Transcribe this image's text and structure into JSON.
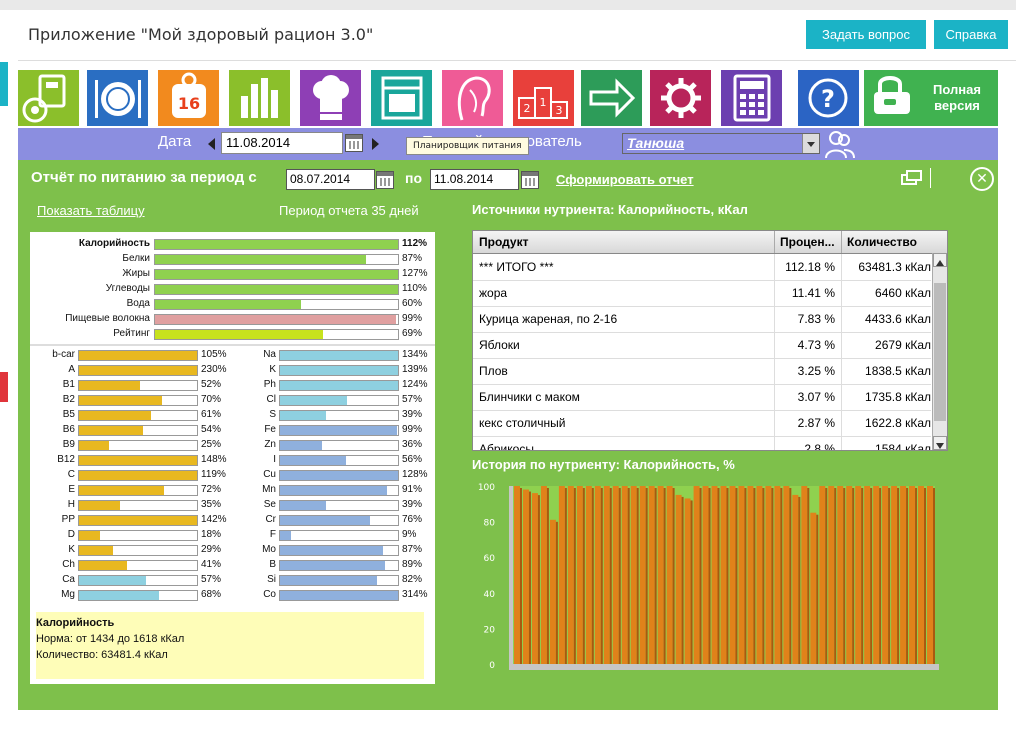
{
  "header": {
    "title": "Приложение \"Мой здоровый рацион 3.0\"",
    "ask_button": "Задать вопрос",
    "help_button": "Справка"
  },
  "toolbar": {
    "items": [
      {
        "icon": "scale-tape-icon",
        "color": "#8bbf2b"
      },
      {
        "icon": "plate-cutlery-icon",
        "color": "#2a6ec2"
      },
      {
        "icon": "weight-16-icon",
        "color": "#f28a1e",
        "label": "16"
      },
      {
        "icon": "bar-chart-icon",
        "color": "#8bbf2b"
      },
      {
        "icon": "chef-hat-icon",
        "color": "#8e3fb5"
      },
      {
        "icon": "oven-icon",
        "color": "#19a69b"
      },
      {
        "icon": "woman-face-icon",
        "color": "#ef5b96"
      },
      {
        "icon": "podium-icon",
        "color": "#e8403b"
      },
      {
        "icon": "arrow-right-icon",
        "color": "#2d9c59"
      },
      {
        "icon": "gear-icon",
        "color": "#b8245a"
      },
      {
        "icon": "calculator-icon",
        "color": "#6c3fb0"
      },
      {
        "icon": "help-icon",
        "color": "#2b64c4"
      }
    ],
    "full_version_line1": "Полная",
    "full_version_line2": "версия",
    "full_version_color": "#40b250"
  },
  "datebar": {
    "date_label": "Дата",
    "date_value": "11.08.2014",
    "user_label": "Текущий пользователь",
    "user_value": "Танюша",
    "tooltip": "Планировщик питания"
  },
  "report": {
    "title": "Отчёт по питанию за период с",
    "from": "08.07.2014",
    "to_label": "по",
    "to": "11.08.2014",
    "generate": "Сформировать отчет",
    "show_table": "Показать таблицу",
    "period": "Период отчета 35 дней"
  },
  "macros": [
    {
      "name": "Калорийность",
      "pct": 112,
      "label": "112%",
      "color": "#8fd14f",
      "bold": true
    },
    {
      "name": "Белки",
      "pct": 87,
      "label": "87%",
      "color": "#8fd14f"
    },
    {
      "name": "Жиры",
      "pct": 127,
      "label": "127%",
      "color": "#8fd14f"
    },
    {
      "name": "Углеводы",
      "pct": 110,
      "label": "110%",
      "color": "#8fd14f"
    },
    {
      "name": "Вода",
      "pct": 60,
      "label": "60%",
      "color": "#8fd14f"
    },
    {
      "name": "Пищевые волокна",
      "pct": 99,
      "label": "99%",
      "color": "#e0a0a0"
    },
    {
      "name": "Рейтинг",
      "pct": 69,
      "label": "69%",
      "color": "#c7e21e"
    }
  ],
  "vitamins": [
    {
      "name": "b-car",
      "pct": 105,
      "label": "105%"
    },
    {
      "name": "A",
      "pct": 230,
      "label": "230%"
    },
    {
      "name": "B1",
      "pct": 52,
      "label": "52%"
    },
    {
      "name": "B2",
      "pct": 70,
      "label": "70%"
    },
    {
      "name": "B5",
      "pct": 61,
      "label": "61%"
    },
    {
      "name": "B6",
      "pct": 54,
      "label": "54%"
    },
    {
      "name": "B9",
      "pct": 25,
      "label": "25%"
    },
    {
      "name": "B12",
      "pct": 148,
      "label": "148%"
    },
    {
      "name": "C",
      "pct": 119,
      "label": "119%"
    },
    {
      "name": "E",
      "pct": 72,
      "label": "72%"
    },
    {
      "name": "H",
      "pct": 35,
      "label": "35%"
    },
    {
      "name": "PP",
      "pct": 142,
      "label": "142%"
    },
    {
      "name": "D",
      "pct": 18,
      "label": "18%"
    },
    {
      "name": "K",
      "pct": 29,
      "label": "29%"
    },
    {
      "name": "Ch",
      "pct": 41,
      "label": "41%"
    },
    {
      "name": "Ca",
      "pct": 57,
      "label": "57%",
      "color": "#8ed0e0"
    },
    {
      "name": "Mg",
      "pct": 68,
      "label": "68%",
      "color": "#8ed0e0"
    }
  ],
  "minerals": [
    {
      "name": "Na",
      "pct": 134,
      "label": "134%",
      "color": "#8ed0e0"
    },
    {
      "name": "K",
      "pct": 139,
      "label": "139%",
      "color": "#8ed0e0"
    },
    {
      "name": "Ph",
      "pct": 124,
      "label": "124%",
      "color": "#8ed0e0"
    },
    {
      "name": "Cl",
      "pct": 57,
      "label": "57%",
      "color": "#8ed0e0"
    },
    {
      "name": "S",
      "pct": 39,
      "label": "39%",
      "color": "#8ed0e0"
    },
    {
      "name": "Fe",
      "pct": 99,
      "label": "99%"
    },
    {
      "name": "Zn",
      "pct": 36,
      "label": "36%"
    },
    {
      "name": "I",
      "pct": 56,
      "label": "56%"
    },
    {
      "name": "Cu",
      "pct": 128,
      "label": "128%"
    },
    {
      "name": "Mn",
      "pct": 91,
      "label": "91%"
    },
    {
      "name": "Se",
      "pct": 39,
      "label": "39%"
    },
    {
      "name": "Cr",
      "pct": 76,
      "label": "76%"
    },
    {
      "name": "F",
      "pct": 9,
      "label": "9%"
    },
    {
      "name": "Mo",
      "pct": 87,
      "label": "87%"
    },
    {
      "name": "B",
      "pct": 89,
      "label": "89%"
    },
    {
      "name": "Si",
      "pct": 82,
      "label": "82%"
    },
    {
      "name": "Co",
      "pct": 314,
      "label": "314%"
    }
  ],
  "vitamin_color": "#e8b820",
  "mineral_color": "#8fb0dd",
  "note": {
    "title": "Калорийность",
    "norm": "Норма: от 1434 до 1618 кКал",
    "amount": "Количество: 63481.4 кКал"
  },
  "sources": {
    "title": "Источники нутриента: Калорийность, кКал",
    "columns": [
      "Продукт",
      "Процен...",
      "Количество"
    ],
    "rows": [
      [
        "*** ИТОГО ***",
        "112.18 %",
        "63481.3 кКал"
      ],
      [
        "жора",
        "11.41 %",
        "6460 кКал"
      ],
      [
        "Курица жареная, по 2-16",
        "7.83 %",
        "4433.6 кКал"
      ],
      [
        "Яблоки",
        "4.73 %",
        "2679 кКал"
      ],
      [
        "Плов",
        "3.25 %",
        "1838.5 кКал"
      ],
      [
        "Блинчики с маком",
        "3.07 %",
        "1735.8 кКал"
      ],
      [
        "кекс столичный",
        "2.87 %",
        "1622.8 кКал"
      ],
      [
        "Абрикосы",
        "2.8 %",
        "1584 кКал"
      ]
    ]
  },
  "chart_data": {
    "type": "bar",
    "title": "История по нутриенту: Калорийность, %",
    "ylim": [
      0,
      100
    ],
    "yticks": [
      0,
      20,
      40,
      60,
      80,
      100
    ],
    "bar_color": "#e0821a",
    "bg_color": "#8fd14f",
    "values": [
      100,
      98,
      96,
      100,
      81,
      100,
      100,
      100,
      100,
      100,
      100,
      100,
      100,
      100,
      100,
      100,
      100,
      100,
      95,
      93,
      100,
      100,
      100,
      100,
      100,
      100,
      100,
      100,
      100,
      100,
      100,
      95,
      100,
      85,
      100,
      100,
      100,
      100,
      100,
      100,
      100,
      100,
      100,
      100,
      100,
      100,
      100
    ],
    "grid": false
  }
}
